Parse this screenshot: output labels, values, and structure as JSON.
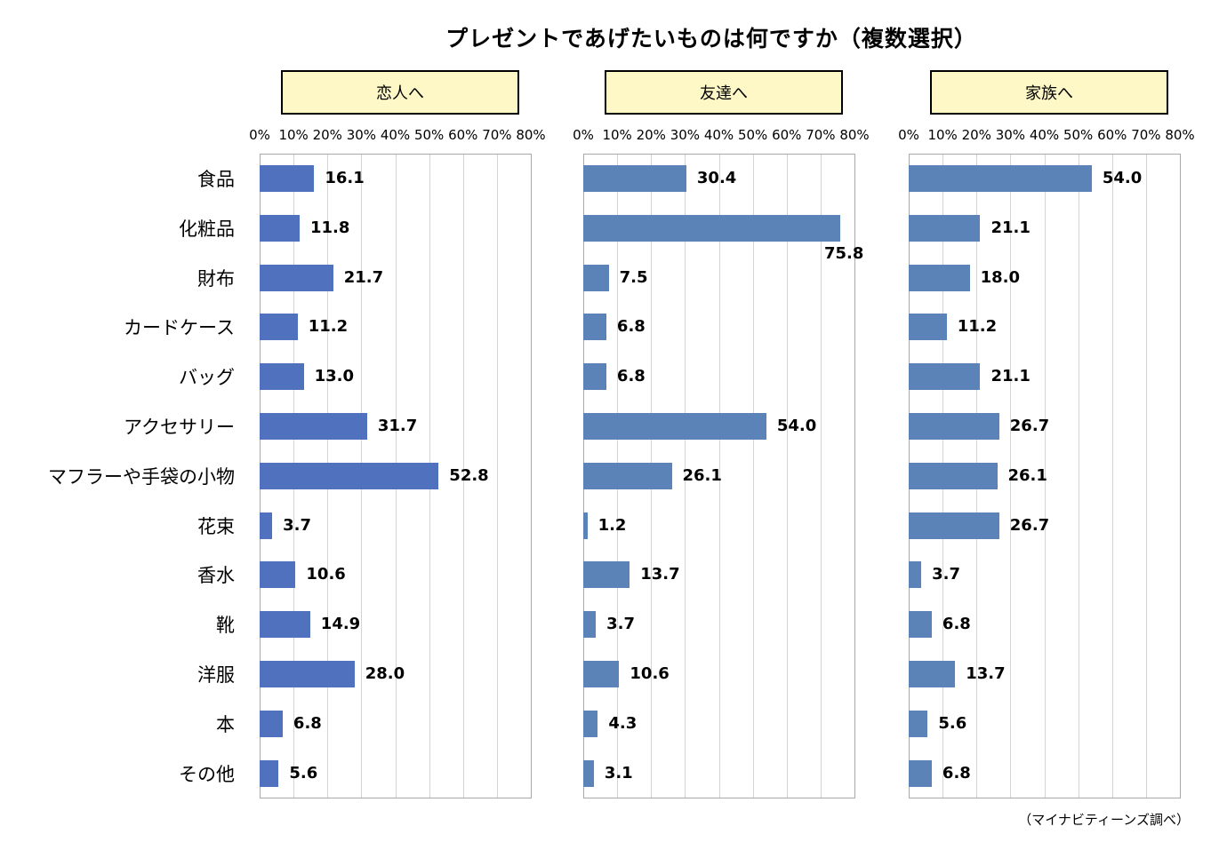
{
  "title": "プレゼントであげたいものは何ですか（複数選択）",
  "source": "（マイナビティーンズ調べ）",
  "colors": {
    "bar_lover": "#4f71be",
    "bar_other": "#5b83b8",
    "header_bg": "#fdf8c6"
  },
  "chart_data": {
    "type": "bar",
    "orientation": "horizontal",
    "title": "プレゼントであげたいものは何ですか（複数選択）",
    "categories": [
      "食品",
      "化粧品",
      "財布",
      "カードケース",
      "バッグ",
      "アクセサリー",
      "マフラーや手袋の小物",
      "花束",
      "香水",
      "靴",
      "洋服",
      "本",
      "その他"
    ],
    "xlim": [
      0,
      80
    ],
    "x_ticks": [
      "0%",
      "10%",
      "20%",
      "30%",
      "40%",
      "50%",
      "60%",
      "70%",
      "80%"
    ],
    "grid": true,
    "panels": [
      {
        "name": "恋人へ",
        "values": [
          16.1,
          11.8,
          21.7,
          11.2,
          13.0,
          31.7,
          52.8,
          3.7,
          10.6,
          14.9,
          28.0,
          6.8,
          5.6
        ],
        "labels": [
          "16.1",
          "11.8",
          "21.7",
          "11.2",
          "13.0",
          "31.7",
          "52.8",
          "3.7",
          "10.6",
          "14.9",
          "28.0",
          "6.8",
          "5.6"
        ]
      },
      {
        "name": "友達へ",
        "values": [
          30.4,
          75.8,
          7.5,
          6.8,
          6.8,
          54.0,
          26.1,
          1.2,
          13.7,
          3.7,
          10.6,
          4.3,
          3.1
        ],
        "labels": [
          "30.4",
          "75.8",
          "7.5",
          "6.8",
          "6.8",
          "54.0",
          "26.1",
          "1.2",
          "13.7",
          "3.7",
          "10.6",
          "4.3",
          "3.1"
        ]
      },
      {
        "name": "家族へ",
        "values": [
          54.0,
          21.1,
          18.0,
          11.2,
          21.1,
          26.7,
          26.1,
          26.7,
          3.7,
          6.8,
          13.7,
          5.6,
          6.8
        ],
        "labels": [
          "54.0",
          "21.1",
          "18.0",
          "11.2",
          "21.1",
          "26.7",
          "26.1",
          "26.7",
          "3.7",
          "6.8",
          "13.7",
          "5.6",
          "6.8"
        ]
      }
    ]
  }
}
